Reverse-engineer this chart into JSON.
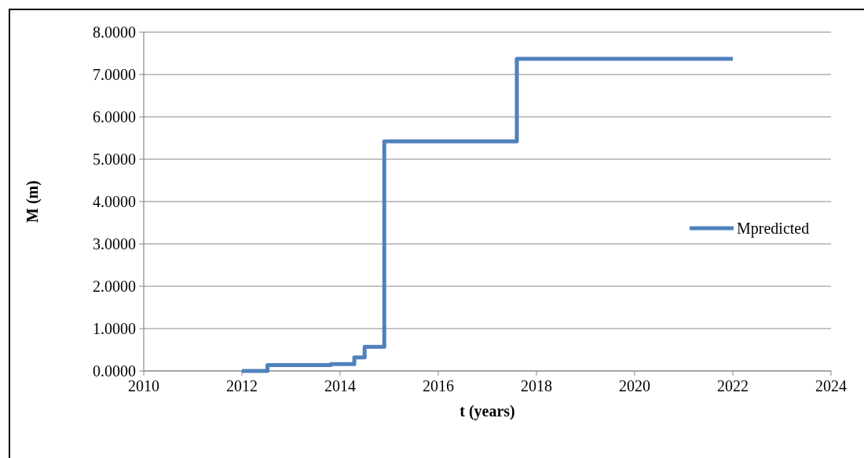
{
  "chart_data": {
    "type": "step",
    "xlabel": "t (years)",
    "ylabel": "M (m)",
    "x": [
      2012,
      2012.52,
      2013.81,
      2014.29,
      2014.5,
      2014.9,
      2017.6,
      2022
    ],
    "series": [
      {
        "name": "Mpredicted",
        "color": "#4f81bd",
        "values": [
          0,
          0.14,
          0.16,
          0.32,
          0.57,
          5.42,
          7.37,
          7.37
        ]
      }
    ],
    "xlim": [
      2010,
      2024
    ],
    "xticks": [
      2010,
      2012,
      2014,
      2016,
      2018,
      2020,
      2022,
      2024
    ],
    "ylim": [
      0,
      8
    ],
    "yticks": [
      {
        "value": 0,
        "label": "0.0000"
      },
      {
        "value": 1,
        "label": "1.0000"
      },
      {
        "value": 2,
        "label": "2.0000"
      },
      {
        "value": 3,
        "label": "3.0000"
      },
      {
        "value": 4,
        "label": "4.0000"
      },
      {
        "value": 5,
        "label": "5.0000"
      },
      {
        "value": 6,
        "label": "6.0000"
      },
      {
        "value": 7,
        "label": "7.0000"
      },
      {
        "value": 8,
        "label": "8.0000"
      }
    ],
    "grid": "y",
    "legend": "right",
    "marker": "none",
    "line_style": "solid"
  }
}
